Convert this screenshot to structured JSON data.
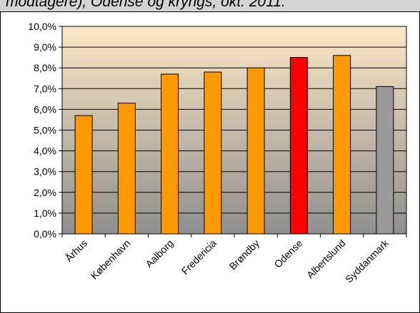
{
  "caption": "modtagere), Odense og kryngs, okt. 2011.",
  "colors": {
    "bar_default": "#ff9900",
    "bar_highlight": "#ff0000",
    "bar_reference": "#999999",
    "plot_gradient_top": "#fbe7c4",
    "plot_gradient_bottom": "#8f8f8f"
  },
  "chart_data": {
    "type": "bar",
    "categories": [
      "Århus",
      "København",
      "Aalborg",
      "Fredericia",
      "Brøndby",
      "Odense",
      "Albertslund",
      "Syddanmark"
    ],
    "values": [
      5.7,
      6.3,
      7.7,
      7.8,
      8.0,
      8.5,
      8.6,
      7.1
    ],
    "bar_colors": [
      "bar_default",
      "bar_default",
      "bar_default",
      "bar_default",
      "bar_default",
      "bar_highlight",
      "bar_default",
      "bar_reference"
    ],
    "ylim": [
      0,
      10
    ],
    "yticks": [
      "0,0%",
      "1,0%",
      "2,0%",
      "3,0%",
      "4,0%",
      "5,0%",
      "6,0%",
      "7,0%",
      "8,0%",
      "9,0%",
      "10,0%"
    ],
    "grid": true,
    "legend": "none",
    "title": "",
    "xlabel": "",
    "ylabel": ""
  }
}
